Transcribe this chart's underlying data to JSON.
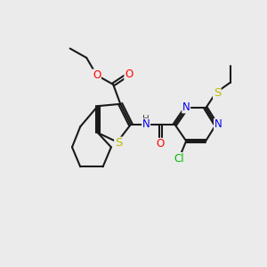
{
  "bg_color": "#ebebeb",
  "bond_color": "#1a1a1a",
  "bond_width": 1.5,
  "atom_colors": {
    "O": "#ff0000",
    "N": "#0000ee",
    "S": "#bbbb00",
    "Cl": "#00bb00",
    "H": "#444444",
    "C": "#1a1a1a"
  },
  "font_size": 8.5,
  "figsize": [
    3.0,
    3.0
  ],
  "dpi": 100
}
